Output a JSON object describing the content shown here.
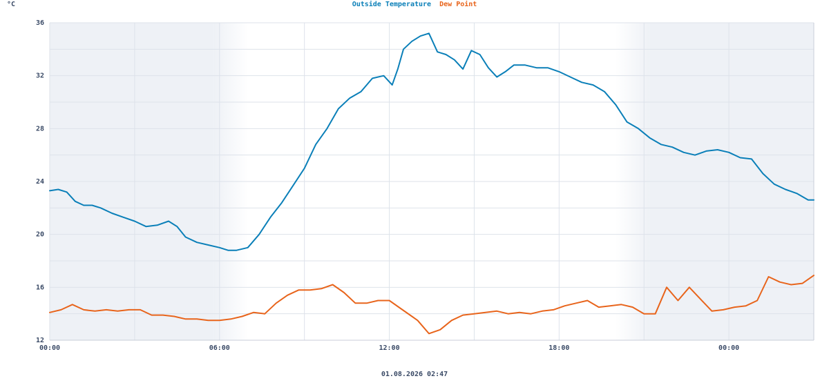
{
  "chart_data": {
    "type": "line",
    "unit": "°C",
    "footer": "01.08.2026 02:47",
    "ylim": [
      12,
      36
    ],
    "y_ticks": [
      "12",
      "16",
      "20",
      "24",
      "28",
      "32",
      "36"
    ],
    "x_ticks": [
      "00:00",
      "06:00",
      "12:00",
      "18:00",
      "00:00"
    ],
    "x_range_hours": [
      0,
      27.0
    ],
    "night_shading": [
      [
        0,
        5.8
      ],
      [
        21.2,
        27.0
      ]
    ],
    "grid": true,
    "series": [
      {
        "name": "Outside Temperature",
        "color": "#0a7fb8",
        "x": [
          0,
          0.3,
          0.6,
          0.9,
          1.2,
          1.5,
          1.8,
          2.2,
          2.6,
          3.0,
          3.4,
          3.8,
          4.2,
          4.5,
          4.8,
          5.2,
          5.6,
          6.0,
          6.3,
          6.6,
          7.0,
          7.4,
          7.8,
          8.2,
          8.6,
          9.0,
          9.4,
          9.8,
          10.2,
          10.6,
          11.0,
          11.4,
          11.8,
          12.1,
          12.3,
          12.5,
          12.8,
          13.1,
          13.4,
          13.7,
          14.0,
          14.3,
          14.6,
          14.9,
          15.2,
          15.5,
          15.8,
          16.1,
          16.4,
          16.8,
          17.2,
          17.6,
          18.0,
          18.4,
          18.8,
          19.2,
          19.6,
          20.0,
          20.4,
          20.8,
          21.2,
          21.6,
          22.0,
          22.4,
          22.8,
          23.2,
          23.6,
          24.0,
          24.4,
          24.8,
          25.2,
          25.6,
          26.0,
          26.4,
          26.8,
          27.0
        ],
        "y": [
          23.3,
          23.4,
          23.2,
          22.5,
          22.2,
          22.2,
          22.0,
          21.6,
          21.3,
          21.0,
          20.6,
          20.7,
          21.0,
          20.6,
          19.8,
          19.4,
          19.2,
          19.0,
          18.8,
          18.8,
          19.0,
          20.0,
          21.3,
          22.4,
          23.7,
          25.0,
          26.8,
          28.0,
          29.5,
          30.3,
          30.8,
          31.8,
          32.0,
          31.3,
          32.5,
          34.0,
          34.6,
          35.0,
          35.2,
          33.8,
          33.6,
          33.2,
          32.5,
          33.9,
          33.6,
          32.6,
          31.9,
          32.3,
          32.8,
          32.8,
          32.6,
          32.6,
          32.3,
          31.9,
          31.5,
          31.3,
          30.8,
          29.8,
          28.5,
          28.0,
          27.3,
          26.8,
          26.6,
          26.2,
          26.0,
          26.3,
          26.4,
          26.2,
          25.8,
          25.7,
          24.6,
          23.8,
          23.4,
          23.1,
          22.6,
          22.6
        ]
      },
      {
        "name": "Dew Point",
        "color": "#e8641b",
        "x": [
          0,
          0.4,
          0.8,
          1.2,
          1.6,
          2.0,
          2.4,
          2.8,
          3.2,
          3.6,
          4.0,
          4.4,
          4.8,
          5.2,
          5.6,
          6.0,
          6.4,
          6.8,
          7.2,
          7.6,
          8.0,
          8.4,
          8.8,
          9.2,
          9.6,
          10.0,
          10.4,
          10.8,
          11.2,
          11.6,
          12.0,
          12.4,
          12.8,
          13.0,
          13.2,
          13.4,
          13.8,
          14.2,
          14.6,
          15.0,
          15.4,
          15.8,
          16.2,
          16.6,
          17.0,
          17.4,
          17.8,
          18.2,
          18.6,
          19.0,
          19.4,
          19.8,
          20.2,
          20.6,
          21.0,
          21.4,
          21.8,
          22.2,
          22.6,
          23.0,
          23.4,
          23.8,
          24.2,
          24.6,
          25.0,
          25.4,
          25.8,
          26.2,
          26.6,
          27.0
        ],
        "y": [
          14.1,
          14.3,
          14.7,
          14.3,
          14.2,
          14.3,
          14.2,
          14.3,
          14.3,
          13.9,
          13.9,
          13.8,
          13.6,
          13.6,
          13.5,
          13.5,
          13.6,
          13.8,
          14.1,
          14.0,
          14.8,
          15.4,
          15.8,
          15.8,
          15.9,
          16.2,
          15.6,
          14.8,
          14.8,
          15.0,
          15.0,
          14.4,
          13.8,
          13.5,
          13.0,
          12.5,
          12.8,
          13.5,
          13.9,
          14.0,
          14.1,
          14.2,
          14.0,
          14.1,
          14.0,
          14.2,
          14.3,
          14.6,
          14.8,
          15.0,
          14.5,
          14.6,
          14.7,
          14.5,
          14.0,
          14.0,
          16.0,
          15.0,
          16.0,
          15.1,
          14.2,
          14.3,
          14.5,
          14.6,
          15.0,
          16.8,
          16.4,
          16.2,
          16.3,
          16.9
        ]
      }
    ]
  }
}
